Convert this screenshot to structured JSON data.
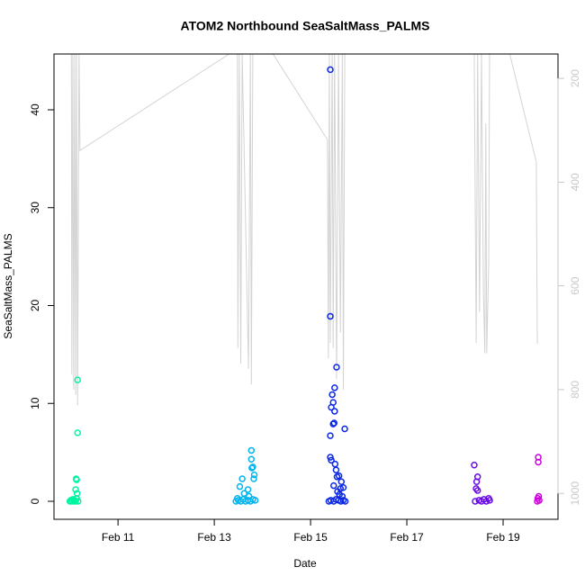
{
  "chart_data": {
    "type": "scatter",
    "title": "ATOM2 Northbound SeaSaltMass_PALMS",
    "xlabel": "Date",
    "ylabel": "SeaSaltMass_PALMS",
    "xlim": [
      9.67,
      20.14
    ],
    "xticks": [
      {
        "value": 11,
        "label": "Feb 11"
      },
      {
        "value": 13,
        "label": "Feb 13"
      },
      {
        "value": 15,
        "label": "Feb 15"
      },
      {
        "value": 17,
        "label": "Feb 17"
      },
      {
        "value": 19,
        "label": "Feb 19"
      }
    ],
    "ylim": [
      -1.84,
      45.7
    ],
    "yticks": [
      0,
      10,
      20,
      30,
      40
    ],
    "y2lim": [
      1050,
      153
    ],
    "y2ticks": [
      200,
      400,
      600,
      800,
      1000
    ],
    "y2color": "#c8c8c8",
    "series": [
      {
        "color": "#00f5a0",
        "x": [
          10.0,
          10.02,
          10.04,
          10.06,
          10.08,
          10.1,
          10.12,
          10.14,
          10.16,
          10.16,
          10.13,
          10.14,
          10.12,
          10.15,
          10.17
        ],
        "values": [
          0,
          0.1,
          0,
          0.2,
          0,
          0.1,
          0,
          0.3,
          12.4,
          7.0,
          2.3,
          2.2,
          1.2,
          0.8,
          0
        ]
      },
      {
        "color": "#00b4f0",
        "x": [
          13.45,
          13.5,
          13.55,
          13.6,
          13.65,
          13.7,
          13.75,
          13.8,
          13.85,
          13.77,
          13.77,
          13.8,
          13.78,
          13.83,
          13.58,
          13.53,
          13.7,
          13.62,
          13.72,
          13.48,
          13.82
        ],
        "values": [
          0,
          0.1,
          0,
          0.2,
          0,
          0.1,
          0,
          0.2,
          0.1,
          5.2,
          4.3,
          3.5,
          3.4,
          2.7,
          2.3,
          1.5,
          1.2,
          0.8,
          0.5,
          0.3,
          2.3
        ]
      },
      {
        "color": "#0a28e6",
        "x": [
          15.41,
          15.41,
          15.54,
          15.5,
          15.45,
          15.47,
          15.43,
          15.5,
          15.49,
          15.47,
          15.41,
          15.71,
          15.41,
          15.43,
          15.51,
          15.53,
          15.59,
          15.55,
          15.64,
          15.48,
          15.68,
          15.62,
          15.56,
          15.6,
          15.66,
          15.38,
          15.42,
          15.48,
          15.53,
          15.58,
          15.63,
          15.68,
          15.72
        ],
        "values": [
          44.1,
          18.9,
          13.7,
          11.6,
          10.9,
          10.1,
          9.6,
          9.2,
          8.0,
          7.9,
          6.7,
          7.4,
          4.5,
          4.2,
          3.8,
          3.2,
          2.6,
          2.5,
          2.0,
          1.6,
          1.4,
          1.3,
          1.0,
          0.7,
          0.5,
          0,
          0.1,
          0,
          0.2,
          0.1,
          0,
          0.1,
          0
        ]
      },
      {
        "color": "#6a0ae6",
        "x": [
          18.4,
          18.47,
          18.45,
          18.44,
          18.47,
          18.7,
          18.42,
          18.5,
          18.55,
          18.6,
          18.65,
          18.72
        ],
        "values": [
          3.7,
          2.5,
          2.0,
          1.3,
          1.1,
          0.3,
          0,
          0.1,
          0,
          0.2,
          0,
          0.1
        ]
      },
      {
        "color": "#d000e0",
        "x": [
          19.73,
          19.73,
          19.74,
          19.72,
          19.75,
          19.71
        ],
        "values": [
          4.5,
          4.0,
          0.5,
          0.3,
          0.1,
          0
        ]
      },
      {
        "color": "#d3d3d3",
        "axis": "y2",
        "kind": "line",
        "x": [
          10.03,
          10.04,
          10.06,
          10.08,
          10.1,
          10.12,
          10.14,
          10.16,
          10.19,
          10.21,
          13.31,
          null,
          13.48,
          13.49,
          13.52,
          13.55,
          13.58,
          13.71,
          13.75,
          13.77,
          13.8,
          null,
          14.2,
          15.35,
          15.37,
          15.39,
          15.41,
          15.45,
          15.47,
          15.5,
          15.54,
          15.58,
          15.62,
          15.66,
          15.68,
          15.71,
          null,
          18.4,
          18.44,
          18.47,
          18.51,
          18.55,
          18.59,
          18.62,
          18.64,
          18.66,
          18.7,
          18.72,
          null,
          19.13,
          19.69,
          19.71
        ],
        "values": [
          150,
          770,
          150,
          800,
          150,
          810,
          150,
          830,
          150,
          339,
          153,
          null,
          150,
          720,
          150,
          750,
          150,
          760,
          150,
          790,
          150,
          null,
          150,
          318,
          740,
          150,
          710,
          150,
          720,
          150,
          780,
          150,
          690,
          150,
          800,
          150,
          null,
          150,
          710,
          150,
          650,
          150,
          610,
          730,
          287,
          730,
          560,
          150,
          null,
          150,
          361,
          712
        ]
      }
    ]
  }
}
